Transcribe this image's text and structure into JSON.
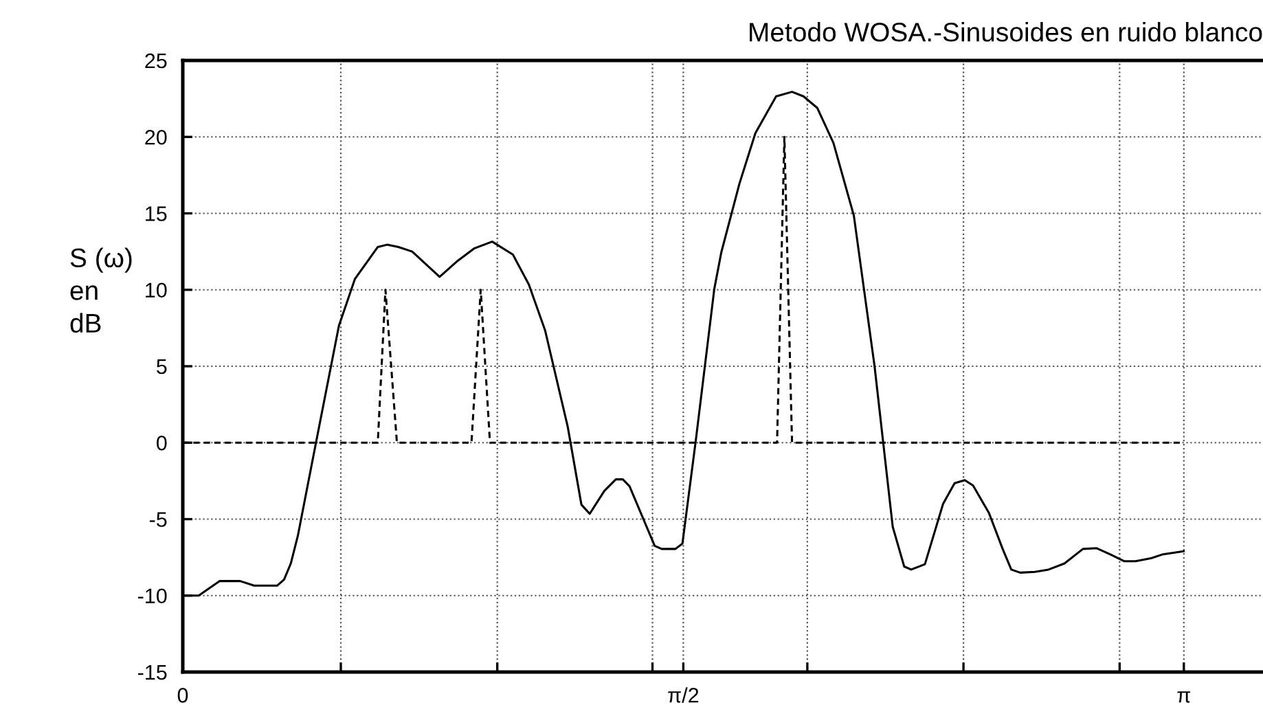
{
  "chart_data": {
    "type": "line",
    "title": "Metodo WOSA.-Sinusoides en ruido blanco",
    "ylabel": "S (ω)\nen\ndB",
    "xlim": [
      0,
      3.39
    ],
    "ylim": [
      -15,
      25
    ],
    "xticks": [
      {
        "value": 0,
        "label": "0"
      },
      {
        "value": 0.496,
        "label": null
      },
      {
        "value": 0.987,
        "label": null
      },
      {
        "value": 1.474,
        "label": null
      },
      {
        "value": 1.5708,
        "label": "π/2"
      },
      {
        "value": 1.96,
        "label": null
      },
      {
        "value": 2.45,
        "label": null
      },
      {
        "value": 2.94,
        "label": null
      },
      {
        "value": 3.1416,
        "label": "π"
      }
    ],
    "yticks": [
      -15,
      -10,
      -5,
      0,
      5,
      10,
      15,
      20,
      25
    ],
    "grid": true,
    "legend": false,
    "marker": "none",
    "series": [
      {
        "color": "#000000",
        "line_style": "solid",
        "x": [
          0,
          0.05,
          0.116,
          0.18,
          0.224,
          0.296,
          0.318,
          0.339,
          0.361,
          0.418,
          0.49,
          0.54,
          0.612,
          0.641,
          0.677,
          0.72,
          0.806,
          0.863,
          0.914,
          0.971,
          1.036,
          1.086,
          1.137,
          1.208,
          1.251,
          1.277,
          1.323,
          1.359,
          1.381,
          1.402,
          1.481,
          1.503,
          1.546,
          1.568,
          1.61,
          1.668,
          1.69,
          1.747,
          1.797,
          1.862,
          1.912,
          1.948,
          1.991,
          2.042,
          2.106,
          2.171,
          2.228,
          2.264,
          2.286,
          2.329,
          2.386,
          2.422,
          2.454,
          2.48,
          2.53,
          2.573,
          2.6,
          2.628,
          2.674,
          2.717,
          2.767,
          2.825,
          2.868,
          2.91,
          2.954,
          2.99,
          3.04,
          3.076,
          3.141
        ],
        "values": [
          -10,
          -10,
          -9.05,
          -9.05,
          -9.35,
          -9.35,
          -8.95,
          -7.9,
          -6.1,
          0,
          7.65,
          10.7,
          12.8,
          12.95,
          12.8,
          12.5,
          10.85,
          11.9,
          12.7,
          13.15,
          12.3,
          10.35,
          7.35,
          1.05,
          -4.05,
          -4.65,
          -3.15,
          -2.4,
          -2.4,
          -2.85,
          -6.75,
          -6.95,
          -6.95,
          -6.6,
          0.15,
          10.05,
          12.45,
          16.95,
          20.25,
          22.65,
          22.95,
          22.65,
          21.9,
          19.6,
          14.85,
          5.0,
          -5.5,
          -8.1,
          -8.3,
          -7.95,
          -4.0,
          -2.65,
          -2.45,
          -2.8,
          -4.6,
          -6.95,
          -8.3,
          -8.5,
          -8.45,
          -8.3,
          -7.9,
          -6.95,
          -6.9,
          -7.3,
          -7.75,
          -7.75,
          -7.55,
          -7.3,
          -7.1
        ]
      },
      {
        "color": "#000000",
        "line_style": "dashed",
        "x": [
          0,
          0.612,
          0.636,
          0.672,
          0.906,
          0.935,
          0.964,
          1.865,
          1.888,
          1.912,
          3.1416
        ],
        "values": [
          0,
          0,
          10,
          0,
          0,
          10,
          0,
          0,
          20,
          0,
          0
        ]
      }
    ]
  }
}
